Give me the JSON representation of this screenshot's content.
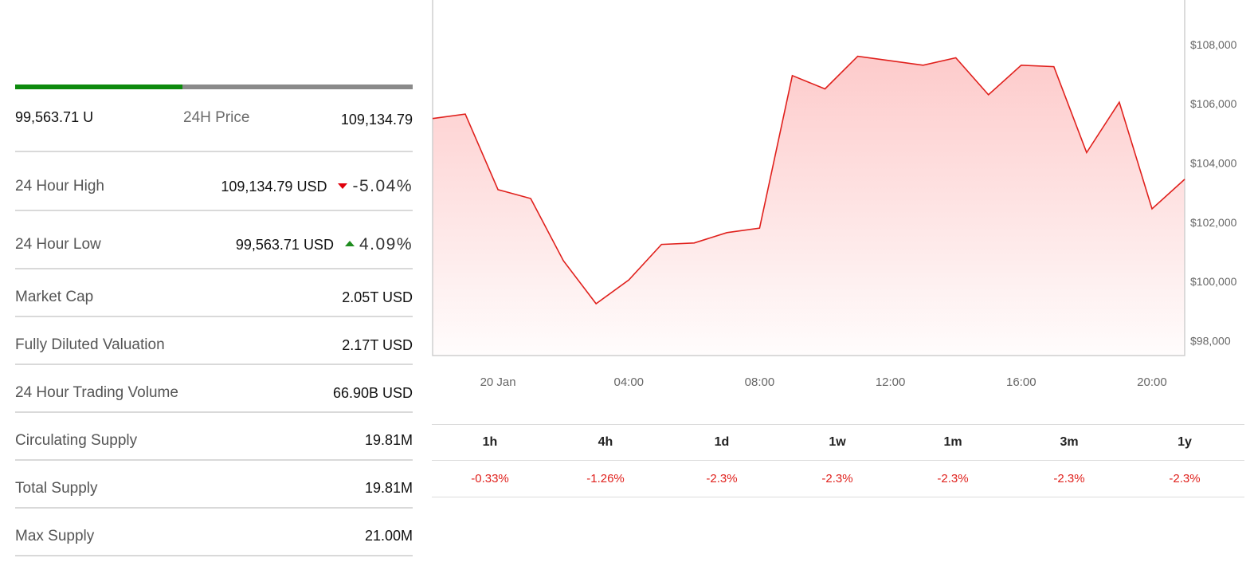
{
  "stats": {
    "range_low": "99,563.71 U",
    "range_label": "24H Price",
    "range_high": "109,134.79",
    "range_fill_percent": 42,
    "high_label": "24 Hour High",
    "high_value": "109,134.79 USD",
    "high_change": "-5.04%",
    "low_label": "24 Hour Low",
    "low_value": "99,563.71 USD",
    "low_change": "4.09%",
    "rows": [
      {
        "label": "Market Cap",
        "value": "2.05T USD"
      },
      {
        "label": "Fully Diluted Valuation",
        "value": "2.17T USD"
      },
      {
        "label": "24 Hour Trading Volume",
        "value": "66.90B USD"
      },
      {
        "label": "Circulating Supply",
        "value": "19.81M"
      },
      {
        "label": "Total Supply",
        "value": "19.81M"
      },
      {
        "label": "Max Supply",
        "value": "21.00M"
      }
    ]
  },
  "performance": {
    "periods": [
      "1h",
      "4h",
      "1d",
      "1w",
      "1m",
      "3m",
      "1y"
    ],
    "changes": [
      "-0.33%",
      "-1.26%",
      "-2.3%",
      "-2.3%",
      "-2.3%",
      "-2.3%",
      "-2.3%"
    ]
  },
  "colors": {
    "line": "#e0201c",
    "fill_top": "#fdc8c8",
    "up": "#1f8c1f",
    "down": "#e0000b",
    "range_fill": "#0d8a0d"
  },
  "chart_data": {
    "type": "area",
    "y_ticks": [
      "$108,000",
      "$106,000",
      "$104,000",
      "$102,000",
      "$100,000",
      "$98,000"
    ],
    "y_tick_values": [
      108000,
      106000,
      104000,
      102000,
      100000,
      98000
    ],
    "ylim": [
      97500,
      109500
    ],
    "x_ticks": [
      "20 Jan",
      "04:00",
      "08:00",
      "12:00",
      "16:00",
      "20:00"
    ],
    "x_tick_values": [
      0,
      4,
      8,
      12,
      16,
      20
    ],
    "xlim": [
      -2,
      21
    ],
    "series": [
      {
        "x": [
          -2,
          -1,
          0,
          1,
          2,
          3,
          4,
          5,
          6,
          7,
          8,
          9,
          10,
          11,
          12,
          13,
          14,
          15,
          16,
          17,
          18,
          19,
          20,
          21
        ],
        "y": [
          105500,
          105650,
          103100,
          102800,
          100700,
          99250,
          100050,
          101250,
          101300,
          101650,
          101800,
          106950,
          106500,
          107600,
          107450,
          107300,
          107550,
          106300,
          107300,
          107250,
          104350,
          106050,
          102450,
          103450
        ]
      }
    ],
    "grid": false,
    "legend": "none"
  }
}
